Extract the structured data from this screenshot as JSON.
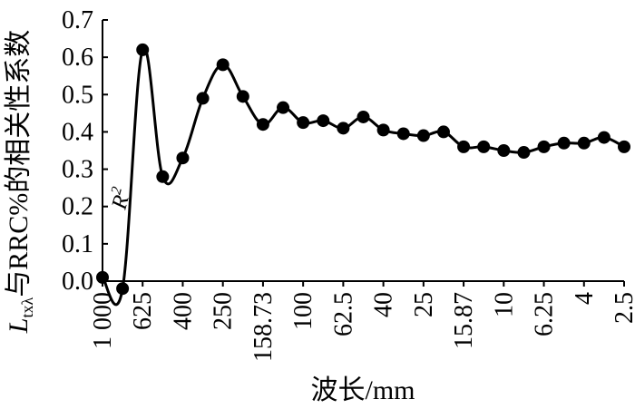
{
  "chart_data": {
    "type": "line",
    "xlabel": "波长/mm",
    "ylabel_main": "与RRC%的相关性系数",
    "ylabel_prefix": "L",
    "ylabel_sub": "txλ",
    "ylim": [
      0.0,
      0.7
    ],
    "y_ticks": [
      "0.0",
      "0.1",
      "0.2",
      "0.3",
      "0.4",
      "0.5",
      "0.6",
      "0.7"
    ],
    "x_tick_labels": [
      "1 000",
      "625",
      "400",
      "250",
      "158.73",
      "100",
      "62.5",
      "40",
      "25",
      "15.87",
      "10",
      "6.25",
      "4",
      "2.5"
    ],
    "grid": false,
    "annotation": {
      "base": "R",
      "sup": "2"
    },
    "series": [
      {
        "values": [
          0.01,
          -0.02,
          0.62,
          0.28,
          0.33,
          0.49,
          0.58,
          0.495,
          0.42,
          0.465,
          0.425,
          0.43,
          0.41,
          0.44,
          0.405,
          0.395,
          0.39,
          0.4,
          0.36,
          0.36,
          0.35,
          0.345,
          0.36,
          0.37,
          0.37,
          0.385,
          0.36
        ]
      }
    ]
  }
}
